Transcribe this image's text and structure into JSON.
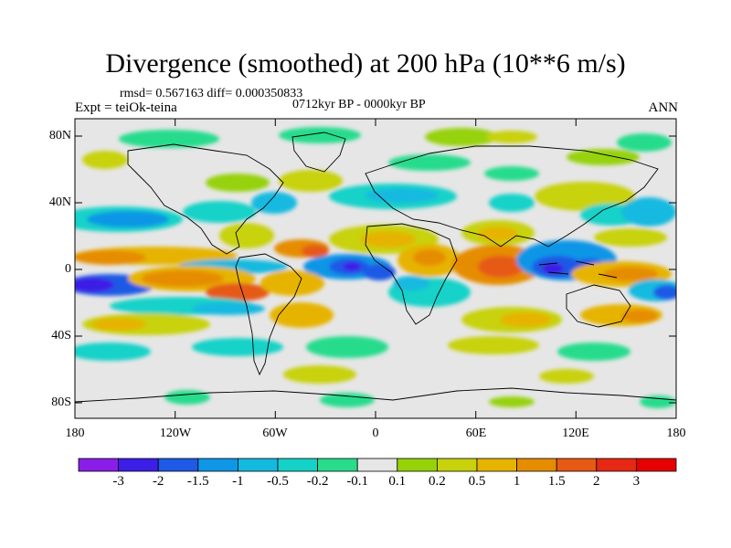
{
  "title": "Divergence (smoothed) at 200 hPa (10**6 m/s)",
  "stats_text": "rmsd= 0.567163 diff= 0.000350833",
  "experiment_text": "Expt = teiOk-teina",
  "period_text": "0712kyr BP - 0000kyr BP",
  "season_text": "ANN",
  "y_ticks": [
    "80N",
    "40N",
    "0",
    "40S",
    "80S"
  ],
  "x_ticks": [
    "180",
    "120W",
    "60W",
    "0",
    "60E",
    "120E",
    "180"
  ],
  "colorbar": {
    "labels": [
      "-3",
      "-2",
      "-1.5",
      "-1",
      "-0.5",
      "-0.2",
      "-0.1",
      "0.1",
      "0.2",
      "0.5",
      "1",
      "1.5",
      "2",
      "3"
    ],
    "colors": [
      "#8a1ee8",
      "#3c1ee6",
      "#1e5ae6",
      "#0f96e6",
      "#14b9e0",
      "#14d2c8",
      "#28dc8c",
      "#e6e6e6",
      "#96d20a",
      "#c8d20a",
      "#e6b400",
      "#e68c00",
      "#e65a14",
      "#e62814",
      "#e60000"
    ]
  },
  "map": {
    "background_color": "#e6e6e6",
    "frame_color": "#000000",
    "coast_color": "#000000"
  }
}
